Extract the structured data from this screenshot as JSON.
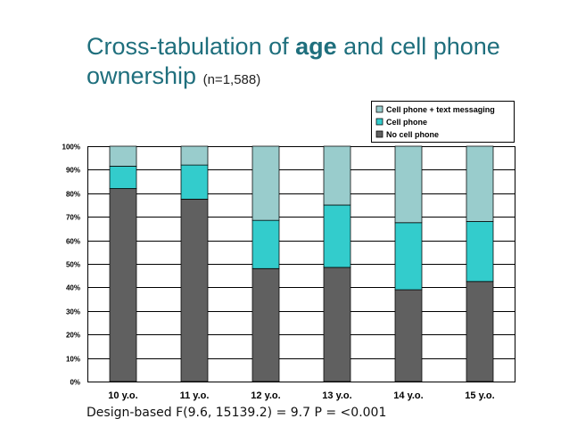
{
  "slide": {
    "title_part1": "Cross-tabulation of ",
    "title_bold": "age",
    "title_part2": " and cell phone ownership",
    "title_n": "(n=1,588)",
    "footer": "Design-based  F(9.6, 15139.2) = 9.7  P = <0.001"
  },
  "chart_data": {
    "type": "bar",
    "stacked": true,
    "percent": true,
    "categories": [
      "10 y.o.",
      "11 y.o.",
      "12 y.o.",
      "13 y.o.",
      "14 y.o.",
      "15 y.o."
    ],
    "series": [
      {
        "name": "No cell phone",
        "color": "#606060",
        "values": [
          82,
          77.5,
          48,
          48.5,
          39,
          42.5
        ]
      },
      {
        "name": "Cell phone",
        "color": "#33cccc",
        "values": [
          9.5,
          14.5,
          20.5,
          26.5,
          28.5,
          25.5
        ]
      },
      {
        "name": "Cell phone + text messaging",
        "color": "#99cccc",
        "values": [
          8.5,
          8,
          31.5,
          25,
          32.5,
          32
        ]
      }
    ],
    "legend": [
      "Cell phone + text messaging",
      "Cell phone",
      "No cell phone"
    ],
    "yticks": [
      "0%",
      "10%",
      "20%",
      "30%",
      "40%",
      "50%",
      "60%",
      "70%",
      "80%",
      "90%",
      "100%"
    ],
    "ylim": [
      0,
      100
    ],
    "grid": true,
    "legend_position": "top-right"
  }
}
